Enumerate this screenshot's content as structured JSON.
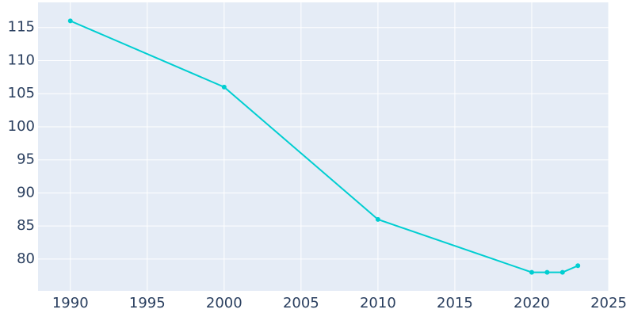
{
  "chart_data": {
    "type": "line",
    "x": [
      1990,
      2000,
      2010,
      2020,
      2021,
      2022,
      2023
    ],
    "series": [
      {
        "color": "#00ced1",
        "values": [
          116,
          106,
          86,
          78,
          78,
          78,
          79
        ]
      }
    ],
    "xlim": [
      1987.9,
      2025
    ],
    "xticks": [
      1990,
      1995,
      2000,
      2005,
      2010,
      2015,
      2020,
      2025
    ],
    "ylim": [
      75.2,
      118.8
    ],
    "yticks": [
      80,
      85,
      90,
      95,
      100,
      105,
      110,
      115
    ],
    "grid": true
  }
}
